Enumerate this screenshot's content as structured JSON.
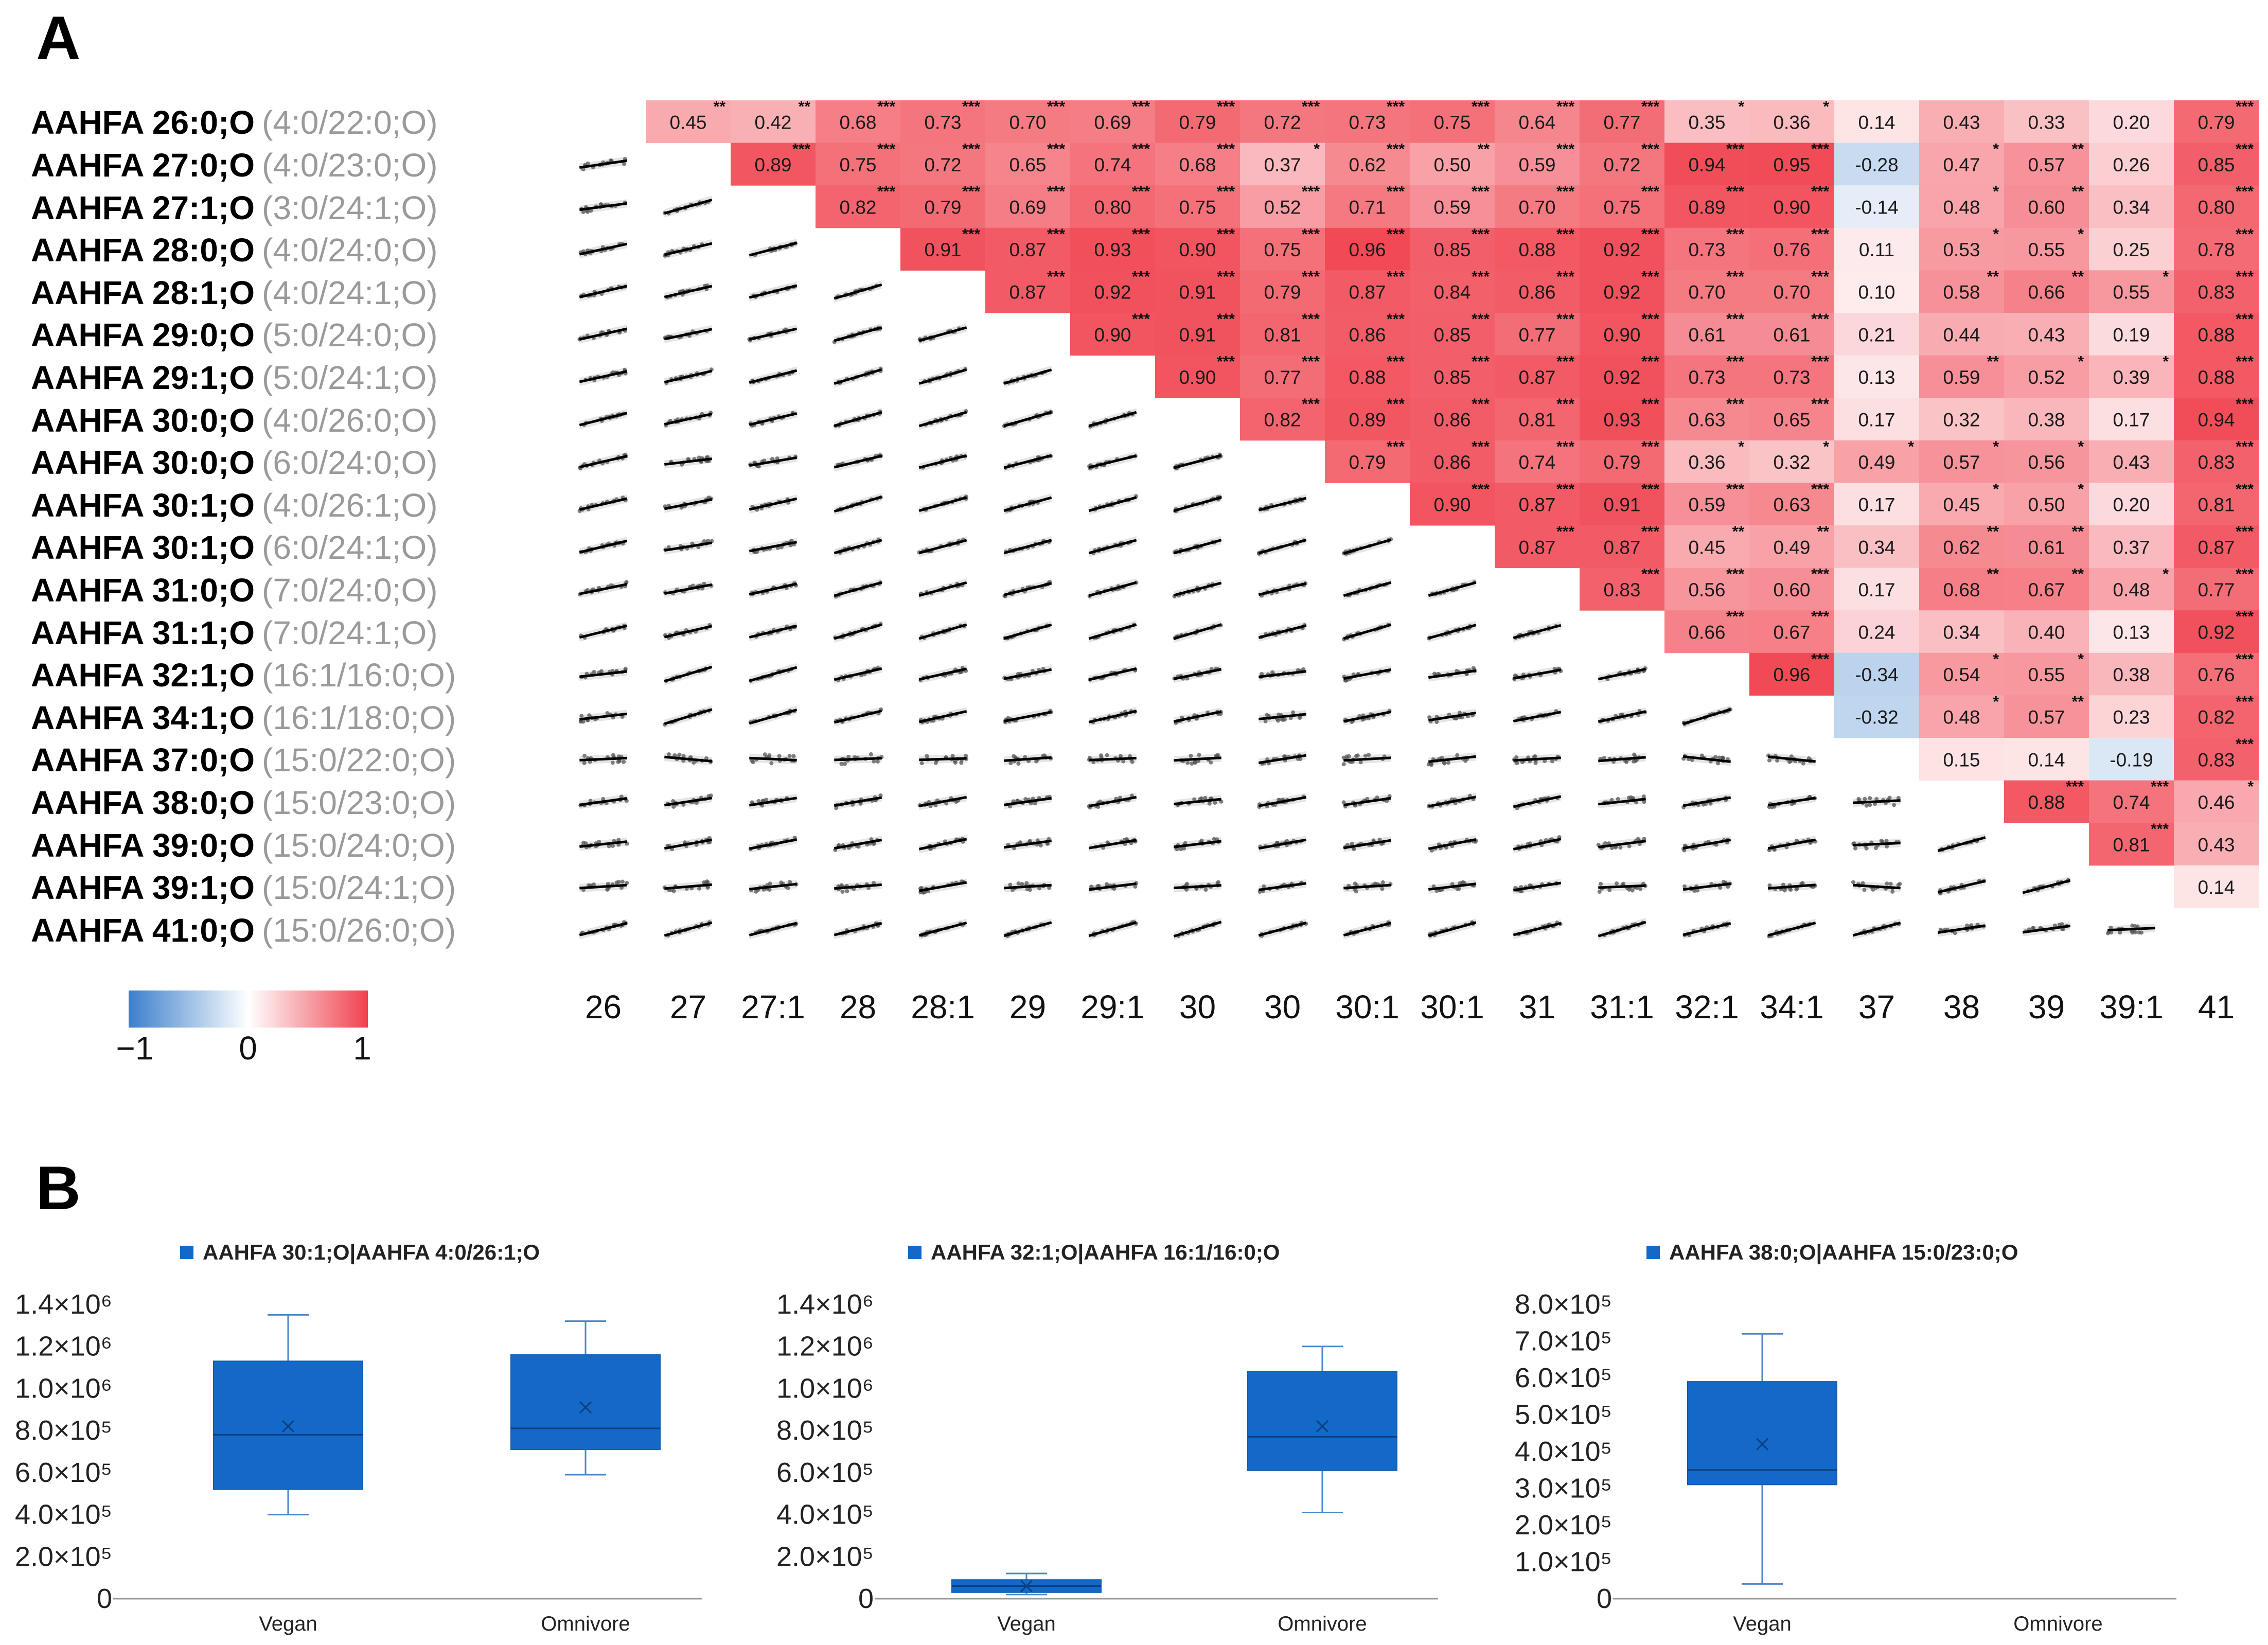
{
  "panel_a_label": "A",
  "panel_b_label": "B",
  "legend": {
    "min_label": "−1",
    "mid_label": "0",
    "max_label": "1",
    "colors": {
      "neg": "#3B7FCC",
      "mid": "#FFFFFF",
      "pos": "#F0424E"
    }
  },
  "chart_data": [
    {
      "type": "heatmap",
      "title": "",
      "rows": [
        {
          "name": "AAHFA 26:0;O",
          "comp": "(4:0/22:0;O)"
        },
        {
          "name": "AAHFA 27:0;O",
          "comp": "(4:0/23:0;O)"
        },
        {
          "name": "AAHFA 27:1;O",
          "comp": "(3:0/24:1;O)"
        },
        {
          "name": "AAHFA 28:0;O",
          "comp": "(4:0/24:0;O)"
        },
        {
          "name": "AAHFA 28:1;O",
          "comp": "(4:0/24:1;O)"
        },
        {
          "name": "AAHFA 29:0;O",
          "comp": "(5:0/24:0;O)"
        },
        {
          "name": "AAHFA 29:1;O",
          "comp": "(5:0/24:1;O)"
        },
        {
          "name": "AAHFA 30:0;O",
          "comp": "(4:0/26:0;O)"
        },
        {
          "name": "AAHFA 30:0;O",
          "comp": "(6:0/24:0;O)"
        },
        {
          "name": "AAHFA 30:1;O",
          "comp": "(4:0/26:1;O)"
        },
        {
          "name": "AAHFA 30:1;O",
          "comp": "(6:0/24:1;O)"
        },
        {
          "name": "AAHFA 31:0;O",
          "comp": "(7:0/24:0;O)"
        },
        {
          "name": "AAHFA 31:1;O",
          "comp": "(7:0/24:1;O)"
        },
        {
          "name": "AAHFA 32:1;O",
          "comp": "(16:1/16:0;O)"
        },
        {
          "name": "AAHFA 34:1;O",
          "comp": "(16:1/18:0;O)"
        },
        {
          "name": "AAHFA 37:0;O",
          "comp": "(15:0/22:0;O)"
        },
        {
          "name": "AAHFA 38:0;O",
          "comp": "(15:0/23:0;O)"
        },
        {
          "name": "AAHFA 39:0;O",
          "comp": "(15:0/24:0;O)"
        },
        {
          "name": "AAHFA 39:1;O",
          "comp": "(15:0/24:1;O)"
        },
        {
          "name": "AAHFA 41:0;O",
          "comp": "(15:0/26:0;O)"
        }
      ],
      "columns": [
        "26",
        "27",
        "27:1",
        "28",
        "28:1",
        "29",
        "29:1",
        "30",
        "30",
        "30:1",
        "30:1",
        "31",
        "31:1",
        "32:1",
        "34:1",
        "37",
        "38",
        "39",
        "39:1",
        "41"
      ],
      "values": [
        [
          "0.45",
          "0.42",
          "0.68",
          "0.73",
          "0.70",
          "0.69",
          "0.79",
          "0.72",
          "0.73",
          "0.75",
          "0.64",
          "0.77",
          "0.35",
          "0.36",
          "0.14",
          "0.43",
          "0.33",
          "0.20",
          "0.79"
        ],
        [
          "0.89",
          "0.75",
          "0.72",
          "0.65",
          "0.74",
          "0.68",
          "0.37",
          "0.62",
          "0.50",
          "0.59",
          "0.72",
          "0.94",
          "0.95",
          "-0.28",
          "0.47",
          "0.57",
          "0.26",
          "0.85"
        ],
        [
          "0.82",
          "0.79",
          "0.69",
          "0.80",
          "0.75",
          "0.52",
          "0.71",
          "0.59",
          "0.70",
          "0.75",
          "0.89",
          "0.90",
          "-0.14",
          "0.48",
          "0.60",
          "0.34",
          "0.80"
        ],
        [
          "0.91",
          "0.87",
          "0.93",
          "0.90",
          "0.75",
          "0.96",
          "0.85",
          "0.88",
          "0.92",
          "0.73",
          "0.76",
          "0.11",
          "0.53",
          "0.55",
          "0.25",
          "0.78"
        ],
        [
          "0.87",
          "0.92",
          "0.91",
          "0.79",
          "0.87",
          "0.84",
          "0.86",
          "0.92",
          "0.70",
          "0.70",
          "0.10",
          "0.58",
          "0.66",
          "0.55",
          "0.83"
        ],
        [
          "0.90",
          "0.91",
          "0.81",
          "0.86",
          "0.85",
          "0.77",
          "0.90",
          "0.61",
          "0.61",
          "0.21",
          "0.44",
          "0.43",
          "0.19",
          "0.88"
        ],
        [
          "0.90",
          "0.77",
          "0.88",
          "0.85",
          "0.87",
          "0.92",
          "0.73",
          "0.73",
          "0.13",
          "0.59",
          "0.52",
          "0.39",
          "0.88"
        ],
        [
          "0.82",
          "0.89",
          "0.86",
          "0.81",
          "0.93",
          "0.63",
          "0.65",
          "0.17",
          "0.32",
          "0.38",
          "0.17",
          "0.94"
        ],
        [
          "0.79",
          "0.86",
          "0.74",
          "0.79",
          "0.36",
          "0.32",
          "0.49",
          "0.57",
          "0.56",
          "0.43",
          "0.83"
        ],
        [
          "0.90",
          "0.87",
          "0.91",
          "0.59",
          "0.63",
          "0.17",
          "0.45",
          "0.50",
          "0.20",
          "0.81"
        ],
        [
          "0.87",
          "0.87",
          "0.45",
          "0.49",
          "0.34",
          "0.62",
          "0.61",
          "0.37",
          "0.87"
        ],
        [
          "0.83",
          "0.56",
          "0.60",
          "0.17",
          "0.68",
          "0.67",
          "0.48",
          "0.77"
        ],
        [
          "0.66",
          "0.67",
          "0.24",
          "0.34",
          "0.40",
          "0.13",
          "0.92"
        ],
        [
          "0.96",
          "-0.34",
          "0.54",
          "0.55",
          "0.38",
          "0.76"
        ],
        [
          "-0.32",
          "0.48",
          "0.57",
          "0.23",
          "0.82"
        ],
        [
          "0.15",
          "0.14",
          "-0.19",
          "0.83"
        ],
        [
          "0.88",
          "0.74",
          "0.46"
        ],
        [
          "0.81",
          "0.43"
        ],
        [
          "0.14"
        ],
        []
      ],
      "significance": [
        [
          "**",
          "**",
          "***",
          "***",
          "***",
          "***",
          "***",
          "***",
          "***",
          "***",
          "***",
          "***",
          "*",
          "*",
          "",
          "",
          "",
          "",
          "***"
        ],
        [
          "***",
          "***",
          "***",
          "***",
          "***",
          "***",
          "*",
          "***",
          "**",
          "***",
          "***",
          "***",
          "***",
          "",
          "*",
          "**",
          "",
          "***"
        ],
        [
          "***",
          "***",
          "***",
          "***",
          "***",
          "***",
          "***",
          "***",
          "***",
          "***",
          "***",
          "***",
          "",
          "*",
          "**",
          "",
          "***"
        ],
        [
          "***",
          "***",
          "***",
          "***",
          "***",
          "***",
          "***",
          "***",
          "***",
          "***",
          "***",
          "",
          "*",
          "*",
          "",
          "***"
        ],
        [
          "***",
          "***",
          "***",
          "***",
          "***",
          "***",
          "***",
          "***",
          "***",
          "***",
          "",
          "**",
          "**",
          "*",
          "***"
        ],
        [
          "***",
          "***",
          "***",
          "***",
          "***",
          "***",
          "***",
          "***",
          "***",
          "",
          "",
          "",
          "",
          "***"
        ],
        [
          "***",
          "***",
          "***",
          "***",
          "***",
          "***",
          "***",
          "***",
          "",
          "**",
          "*",
          "*",
          "***"
        ],
        [
          "***",
          "***",
          "***",
          "***",
          "***",
          "***",
          "***",
          "",
          "",
          "",
          "",
          "***"
        ],
        [
          "***",
          "***",
          "***",
          "***",
          "*",
          "*",
          "*",
          "*",
          "*",
          "",
          "***"
        ],
        [
          "***",
          "***",
          "***",
          "***",
          "***",
          "",
          "*",
          "*",
          "",
          "***"
        ],
        [
          "***",
          "***",
          "**",
          "**",
          "",
          "**",
          "**",
          "",
          "***"
        ],
        [
          "***",
          "***",
          "***",
          "",
          "**",
          "**",
          "*",
          "***"
        ],
        [
          "***",
          "***",
          "",
          "",
          "",
          "",
          "***"
        ],
        [
          "***",
          "",
          "*",
          "*",
          "",
          "***"
        ],
        [
          "",
          "*",
          "**",
          "",
          "***"
        ],
        [
          "",
          "",
          "",
          "***"
        ],
        [
          "***",
          "***",
          "*"
        ],
        [
          "***",
          ""
        ],
        [
          ""
        ],
        []
      ],
      "value_range": [
        -1,
        1
      ],
      "legend_labels": [
        "−1",
        "0",
        "1"
      ]
    },
    {
      "type": "box",
      "legend": "AAHFA 30:1;O|AAHFA 4:0/26:1;O",
      "categories": [
        "Vegan",
        "Omnivore"
      ],
      "ylim": [
        0,
        1400000
      ],
      "y_ticks": [
        "0",
        "2.0×10⁵",
        "4.0×10⁵",
        "6.0×10⁵",
        "8.0×10⁵",
        "1.0×10⁶",
        "1.2×10⁶",
        "1.4×10⁶"
      ],
      "y_tick_values": [
        0,
        200000,
        400000,
        600000,
        800000,
        1000000,
        1200000,
        1400000
      ],
      "boxes": [
        {
          "min": 400000,
          "q1": 520000,
          "median": 780000,
          "q3": 1130000,
          "max": 1350000,
          "mean": 820000
        },
        {
          "min": 590000,
          "q1": 710000,
          "median": 810000,
          "q3": 1160000,
          "max": 1320000,
          "mean": 910000
        }
      ]
    },
    {
      "type": "box",
      "legend": "AAHFA 32:1;O|AAHFA 16:1/16:0;O",
      "categories": [
        "Vegan",
        "Omnivore"
      ],
      "ylim": [
        0,
        1400000
      ],
      "y_ticks": [
        "0",
        "2.0×10⁵",
        "4.0×10⁵",
        "6.0×10⁵",
        "8.0×10⁵",
        "1.0×10⁶",
        "1.2×10⁶",
        "1.4×10⁶"
      ],
      "y_tick_values": [
        0,
        200000,
        400000,
        600000,
        800000,
        1000000,
        1200000,
        1400000
      ],
      "boxes": [
        {
          "min": 20000,
          "q1": 30000,
          "median": 60000,
          "q3": 90000,
          "max": 120000,
          "mean": 60000
        },
        {
          "min": 410000,
          "q1": 610000,
          "median": 770000,
          "q3": 1080000,
          "max": 1200000,
          "mean": 820000
        }
      ]
    },
    {
      "type": "box",
      "legend": "AAHFA 38:0;O|AAHFA 15:0/23:0;O",
      "categories": [
        "Vegan",
        "Omnivore"
      ],
      "ylim": [
        0,
        800000
      ],
      "y_ticks": [
        "0",
        "1.0×10⁵",
        "2.0×10⁵",
        "3.0×10⁵",
        "4.0×10⁵",
        "5.0×10⁵",
        "6.0×10⁵",
        "7.0×10⁵",
        "8.0×10⁵"
      ],
      "y_tick_values": [
        0,
        100000,
        200000,
        300000,
        400000,
        500000,
        600000,
        700000,
        800000
      ],
      "boxes": [
        {
          "min": 40000,
          "q1": 310000,
          "median": 350000,
          "q3": 590000,
          "max": 720000,
          "mean": 420000
        },
        null
      ]
    }
  ]
}
